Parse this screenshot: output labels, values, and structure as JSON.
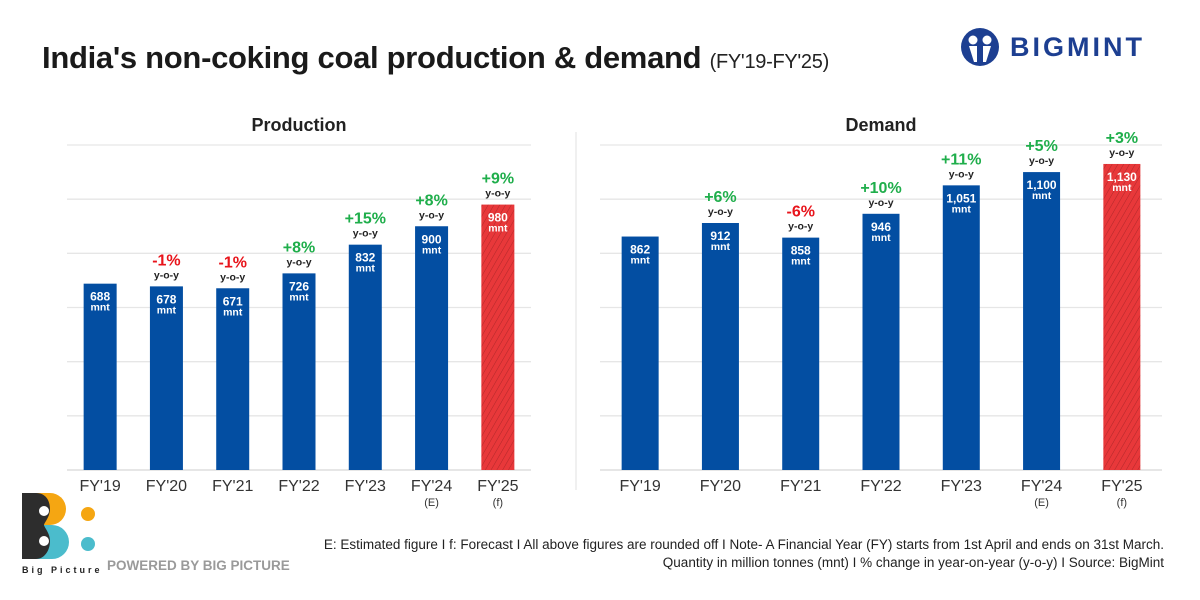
{
  "header": {
    "title": "India's non-coking coal production & demand",
    "subtitle": "(FY'19-FY'25)"
  },
  "brand": {
    "name": "BIGMINT",
    "color": "#1d3f91"
  },
  "chart_data": [
    {
      "type": "bar",
      "title": "Production",
      "categories": [
        "FY'19",
        "FY'20",
        "FY'21",
        "FY'22",
        "FY'23",
        "FY'24",
        "FY'25"
      ],
      "category_notes": [
        "",
        "",
        "",
        "",
        "",
        "(E)",
        "(f)"
      ],
      "values": [
        688,
        678,
        671,
        726,
        832,
        900,
        980
      ],
      "value_labels": [
        "688",
        "678",
        "671",
        "726",
        "832",
        "900",
        "980"
      ],
      "unit": "mnt",
      "yoy": [
        "",
        "-1%",
        "-1%",
        "+8%",
        "+15%",
        "+8%",
        "+9%"
      ],
      "yoy_label": "y-o-y",
      "ylim": [
        0,
        1200
      ],
      "grid": true,
      "colors": {
        "actual": "#034ea2",
        "forecast": "#e8383a",
        "positive": "#1fae4b",
        "negative": "#e8141b"
      }
    },
    {
      "type": "bar",
      "title": "Demand",
      "categories": [
        "FY'19",
        "FY'20",
        "FY'21",
        "FY'22",
        "FY'23",
        "FY'24",
        "FY'25"
      ],
      "category_notes": [
        "",
        "",
        "",
        "",
        "",
        "(E)",
        "(f)"
      ],
      "values": [
        862,
        912,
        858,
        946,
        1051,
        1100,
        1130
      ],
      "value_labels": [
        "862",
        "912",
        "858",
        "946",
        "1,051",
        "1,100",
        "1,130"
      ],
      "unit": "mnt",
      "yoy": [
        "",
        "+6%",
        "-6%",
        "+10%",
        "+11%",
        "+5%",
        "+3%"
      ],
      "yoy_label": "y-o-y",
      "ylim": [
        0,
        1200
      ],
      "grid": true,
      "colors": {
        "actual": "#034ea2",
        "forecast": "#e8383a",
        "positive": "#1fae4b",
        "negative": "#e8141b"
      }
    }
  ],
  "footer": {
    "line1": "E: Estimated figure  I   f: Forecast  I  All above figures are rounded off   I  Note- A Financial Year (FY) starts from 1st April and ends on 31st March.",
    "line2": "Quantity in million tonnes (mnt)  I  % change in year-on-year (y-o-y)  I    Source: BigMint",
    "powered": "POWERED BY BIG PICTURE",
    "bp_logo_text": "Big Picture"
  }
}
